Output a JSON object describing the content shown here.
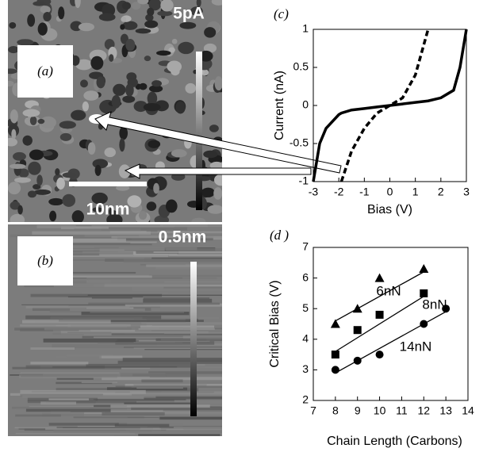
{
  "images": [
    {
      "label": "(a)",
      "scale_label": "5pA",
      "bar_label": "10nm"
    },
    {
      "label": "(b)",
      "scale_label": "0.5nm"
    }
  ],
  "chart_data": [
    {
      "type": "line",
      "panel_label": "(c)",
      "x_label": "Bias (V)",
      "y_label": "Current (nA)",
      "x": [
        -3,
        -2.75,
        -2.5,
        -2,
        -1.9,
        -1.5,
        -1,
        -0.5,
        0,
        0.5,
        1,
        1.5,
        2,
        2.5,
        2.75,
        3
      ],
      "series": [
        {
          "color": "#000000",
          "dashed": false,
          "values": [
            -1,
            -0.5,
            -0.3,
            -0.12,
            -0.1,
            -0.06,
            -0.04,
            -0.02,
            0,
            0.02,
            0.04,
            0.06,
            0.1,
            0.2,
            0.5,
            1
          ]
        },
        {
          "color": "#000000",
          "dashed": true,
          "values": [
            null,
            null,
            null,
            null,
            -1,
            -0.6,
            -0.3,
            -0.1,
            0,
            0.1,
            0.4,
            1,
            null,
            null,
            null,
            null
          ]
        }
      ],
      "xlim": [
        -3,
        3
      ],
      "xticks": [
        -3,
        -2,
        -1,
        0,
        1,
        2,
        3
      ],
      "ylim": [
        -1,
        1
      ],
      "yticks": [
        -1,
        -0.5,
        0,
        0.5,
        1
      ]
    },
    {
      "type": "scatter",
      "panel_label": "(d )",
      "x_label": "Chain Length (Carbons)",
      "y_label": "Critical Bias (V)",
      "series": [
        {
          "name": "6nN",
          "marker": "triangle",
          "color": "#000000",
          "x": [
            8,
            9,
            10,
            12
          ],
          "values": [
            4.5,
            5,
            6,
            6.3
          ],
          "fit_x": [
            8,
            12
          ],
          "fit_y": [
            4.6,
            6.2
          ]
        },
        {
          "name": "8nN",
          "marker": "square",
          "color": "#000000",
          "x": [
            8,
            9,
            10,
            12
          ],
          "values": [
            3.5,
            4.3,
            4.8,
            5.5
          ],
          "fit_x": [
            8,
            12
          ],
          "fit_y": [
            3.6,
            5.4
          ]
        },
        {
          "name": "14nN",
          "marker": "circle",
          "color": "#000000",
          "x": [
            8,
            9,
            10,
            12,
            13
          ],
          "values": [
            3,
            3.3,
            3.5,
            4.5,
            5
          ],
          "fit_x": [
            8,
            13
          ],
          "fit_y": [
            2.9,
            4.9
          ]
        }
      ],
      "xlim": [
        7,
        14
      ],
      "xticks": [
        7,
        8,
        9,
        10,
        11,
        12,
        13,
        14
      ],
      "ylim": [
        2,
        7
      ],
      "yticks": [
        2,
        3,
        4,
        5,
        6,
        7
      ]
    }
  ]
}
